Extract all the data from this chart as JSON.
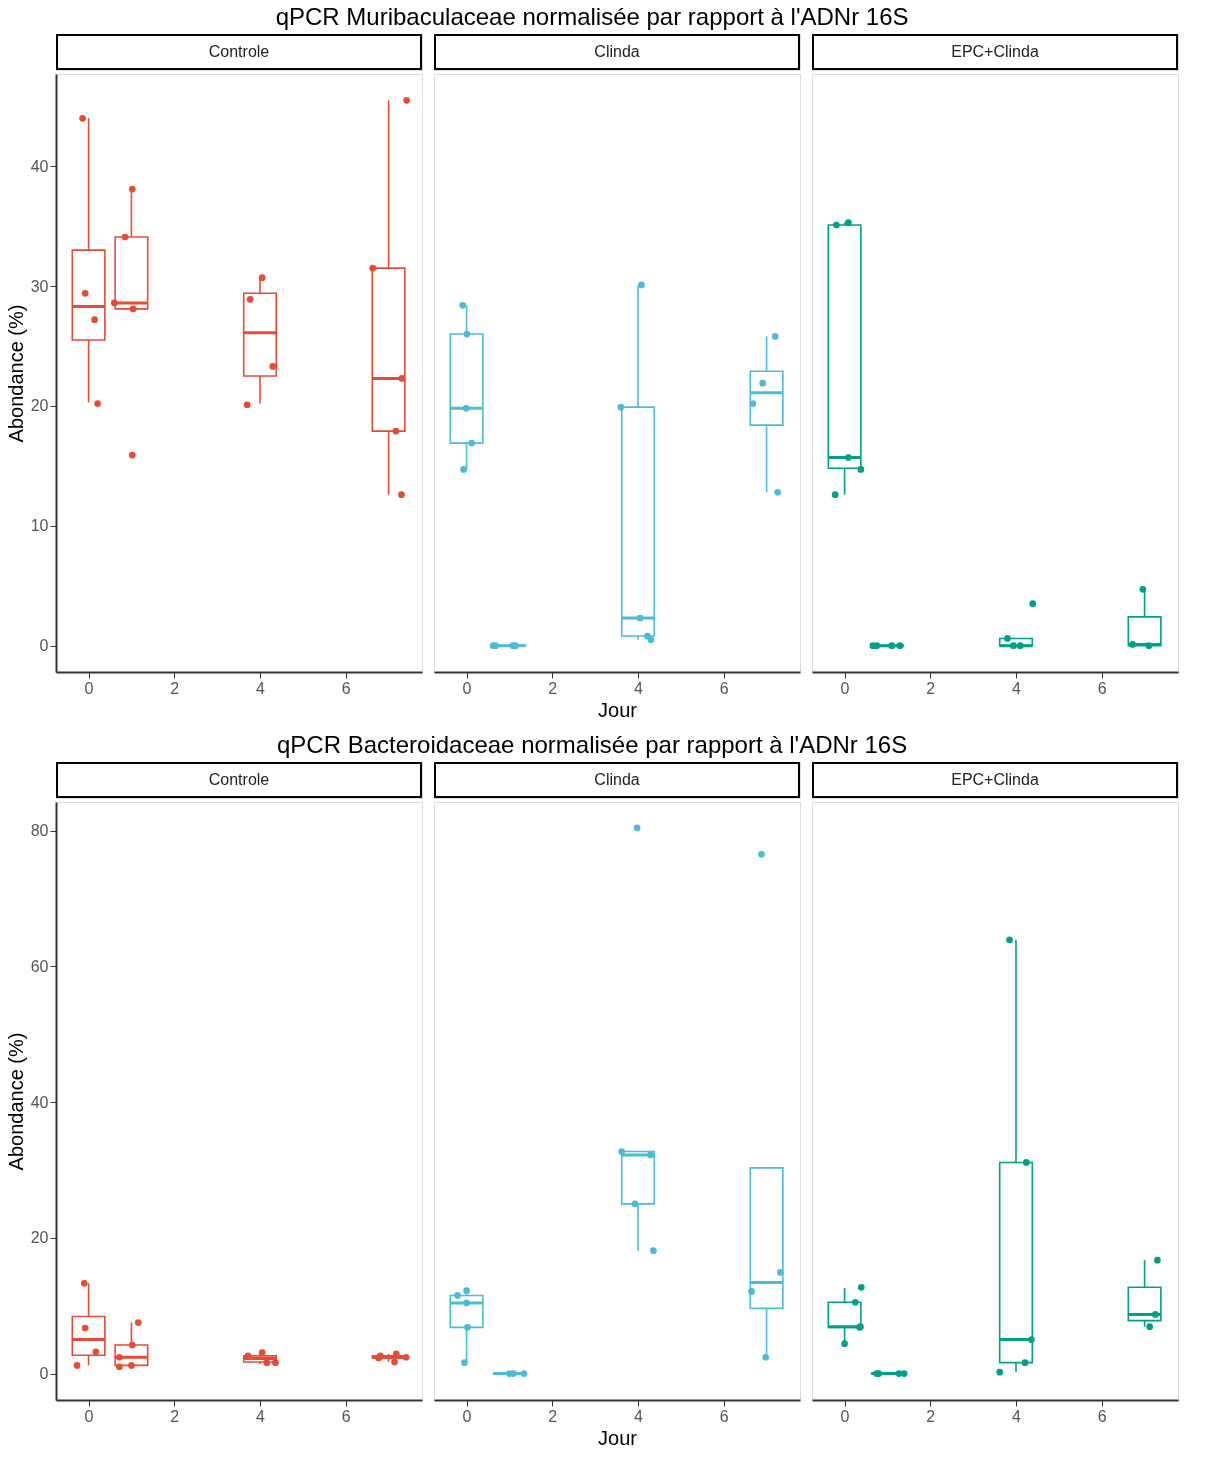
{
  "chart_data": [
    {
      "type": "box",
      "subtitle": "Controle",
      "ylabel": "Abondance (%)",
      "x": [
        0,
        1,
        4,
        7
      ],
      "xlim": [
        -0.76,
        7.78
      ],
      "xticks": [
        0,
        2,
        4,
        6
      ],
      "ylim": [
        -2.2,
        47.7
      ],
      "yticks": [
        0,
        10,
        20,
        30,
        40
      ],
      "grid": false,
      "series": [
        {
          "type": "box",
          "color": "#e64b35",
          "boxes": [
            {
              "low": 20.3,
              "q1": 25.5,
              "median": 28.3,
              "q3": 33.0,
              "high": 44.0
            },
            {
              "low": 28.1,
              "q1": 28.1,
              "median": 28.6,
              "q3": 34.1,
              "high": 38.1
            },
            {
              "low": 20.2,
              "q1": 22.5,
              "median": 26.1,
              "q3": 29.4,
              "high": 30.7
            },
            {
              "low": 12.6,
              "q1": 17.9,
              "median": 22.3,
              "q3": 31.5,
              "high": 45.5
            }
          ]
        },
        {
          "type": "scatter",
          "color": "#e64b35",
          "marker": "circle",
          "x": [
            -0.14,
            -0.08,
            0.14,
            0.21,
            1.02,
            0.85,
            0.6,
            1.04,
            1.02,
            4.05,
            3.77,
            4.3,
            3.7,
            7.42,
            6.63,
            7.31,
            7.17,
            7.3
          ],
          "values": [
            44.0,
            29.4,
            27.2,
            20.2,
            38.1,
            34.1,
            28.6,
            28.1,
            15.9,
            30.7,
            28.9,
            23.3,
            20.1,
            45.5,
            31.5,
            22.3,
            17.9,
            12.6
          ]
        }
      ]
    },
    {
      "type": "box",
      "title": "qPCR Muribaculaceae normalisée par rapport à l'ADNr 16S",
      "subtitle": "Clinda",
      "xlabel": "Jour",
      "x": [
        0,
        1,
        4,
        7
      ],
      "xlim": [
        -0.76,
        7.78
      ],
      "xticks": [
        0,
        2,
        4,
        6
      ],
      "ylim": [
        -2.2,
        47.7
      ],
      "yticks": [
        0,
        10,
        20,
        30,
        40
      ],
      "tick_labels": "x",
      "grid": false,
      "series": [
        {
          "type": "box",
          "color": "#4dbbd5",
          "boxes": [
            {
              "low": 14.7,
              "q1": 16.9,
              "median": 19.8,
              "q3": 26.0,
              "high": 28.4
            },
            {
              "low": 0,
              "q1": 0,
              "median": 0,
              "q3": 0,
              "high": 0
            },
            {
              "low": 0.5,
              "q1": 0.8,
              "median": 2.3,
              "q3": 19.9,
              "high": 30.1
            },
            {
              "low": 12.8,
              "q1": 18.4,
              "median": 21.1,
              "q3": 22.9,
              "high": 25.8
            }
          ]
        },
        {
          "type": "scatter",
          "color": "#4dbbd5",
          "marker": "circle",
          "x": [
            -0.09,
            0.01,
            -0.01,
            0.12,
            -0.07,
            0.62,
            0.68,
            1.08,
            1.14,
            4.08,
            3.6,
            4.05,
            4.22,
            4.3,
            7.2,
            6.91,
            6.68,
            7.26
          ],
          "values": [
            28.4,
            26.0,
            19.8,
            16.9,
            14.7,
            0,
            0,
            0,
            0,
            30.1,
            19.9,
            2.3,
            0.8,
            0.5,
            25.8,
            21.9,
            20.2,
            12.8
          ]
        }
      ]
    },
    {
      "type": "box",
      "subtitle": "EPC+Clinda",
      "x": [
        0,
        1,
        4,
        7
      ],
      "xlim": [
        -0.76,
        7.78
      ],
      "xticks": [
        0,
        2,
        4,
        6
      ],
      "ylim": [
        -2.2,
        47.7
      ],
      "yticks": [
        0,
        10,
        20,
        30,
        40
      ],
      "tick_labels": "x",
      "grid": false,
      "series": [
        {
          "type": "box",
          "color": "#00a087",
          "boxes": [
            {
              "low": 12.6,
              "q1": 14.8,
              "median": 15.7,
              "q3": 35.1,
              "high": 35.3
            },
            {
              "low": 0,
              "q1": 0,
              "median": 0,
              "q3": 0,
              "high": 0
            },
            {
              "low": 0,
              "q1": 0,
              "median": 0,
              "q3": 0.6,
              "high": 0.6
            },
            {
              "low": 0,
              "q1": 0,
              "median": 0.1,
              "q3": 2.4,
              "high": 4.7
            }
          ]
        },
        {
          "type": "scatter",
          "color": "#00a087",
          "marker": "circle",
          "x": [
            -0.19,
            0.09,
            0.09,
            0.38,
            -0.22,
            0.66,
            0.75,
            1.1,
            1.29,
            3.8,
            3.94,
            4.1,
            4.39,
            6.96,
            6.72,
            7.1
          ],
          "values": [
            35.1,
            35.3,
            15.7,
            14.7,
            12.6,
            0,
            0,
            0,
            0,
            0.6,
            0,
            0,
            3.5,
            4.7,
            0.1,
            0
          ]
        }
      ]
    },
    {
      "type": "box",
      "subtitle": "Controle",
      "ylabel": "Abondance (%)",
      "x": [
        0,
        1,
        4,
        7
      ],
      "xlim": [
        -0.76,
        7.78
      ],
      "xticks": [
        0,
        2,
        4,
        6
      ],
      "ylim": [
        -3.9,
        84.2
      ],
      "yticks": [
        0,
        20,
        40,
        60,
        80
      ],
      "grid": false,
      "series": [
        {
          "type": "box",
          "color": "#e64b35",
          "boxes": [
            {
              "low": 1.2,
              "q1": 2.7,
              "median": 5.0,
              "q3": 8.4,
              "high": 13.3
            },
            {
              "low": 1.0,
              "q1": 1.2,
              "median": 2.4,
              "q3": 4.2,
              "high": 7.5
            },
            {
              "low": 1.4,
              "q1": 1.7,
              "median": 2.2,
              "q3": 2.6,
              "high": 3.1
            },
            {
              "low": 1.7,
              "q1": 2.3,
              "median": 2.4,
              "q3": 2.6,
              "high": 2.9
            }
          ]
        },
        {
          "type": "scatter",
          "color": "#e64b35",
          "marker": "circle",
          "x": [
            -0.1,
            -0.08,
            0.17,
            -0.27,
            1.16,
            1.02,
            0.72,
            0.72,
            1.0,
            3.72,
            4.05,
            4.16,
            4.36,
            6.77,
            7.18,
            7.14,
            7.41,
            6.81
          ],
          "values": [
            13.3,
            6.7,
            3.2,
            1.2,
            7.5,
            4.2,
            2.4,
            1.0,
            1.2,
            2.6,
            3.1,
            1.6,
            1.6,
            2.3,
            2.9,
            1.7,
            2.4,
            2.6
          ]
        }
      ]
    },
    {
      "type": "box",
      "title": "qPCR Bacteroidaceae normalisée par rapport à l'ADNr 16S",
      "subtitle": "Clinda",
      "xlabel": "Jour",
      "x": [
        0,
        1,
        4,
        7
      ],
      "xlim": [
        -0.76,
        7.78
      ],
      "xticks": [
        0,
        2,
        4,
        6
      ],
      "ylim": [
        -3.9,
        84.2
      ],
      "yticks": [
        0,
        20,
        40,
        60,
        80
      ],
      "tick_labels": "x",
      "grid": false,
      "series": [
        {
          "type": "box",
          "color": "#4dbbd5",
          "boxes": [
            {
              "low": 1.6,
              "q1": 6.8,
              "median": 10.4,
              "q3": 11.5,
              "high": 12.2
            },
            {
              "low": 0,
              "q1": 0,
              "median": 0,
              "q3": 0,
              "high": 0
            },
            {
              "low": 18.1,
              "q1": 25.0,
              "median": 32.2,
              "q3": 32.7,
              "high": 32.7
            },
            {
              "low": 2.4,
              "q1": 9.6,
              "median": 13.4,
              "q3": 30.3,
              "high": 30.3
            }
          ]
        },
        {
          "type": "scatter",
          "color": "#4dbbd5",
          "marker": "circle",
          "x": [
            -0.21,
            0,
            0,
            0.02,
            -0.05,
            1.0,
            1.09,
            1.34,
            3.98,
            3.62,
            4.29,
            3.93,
            4.36,
            6.88,
            7.32,
            6.65,
            6.98
          ],
          "values": [
            11.5,
            12.2,
            10.4,
            6.8,
            1.6,
            0,
            0,
            0,
            80.4,
            32.7,
            32.2,
            25.0,
            18.1,
            76.5,
            14.9,
            12.1,
            2.4
          ]
        }
      ]
    },
    {
      "type": "box",
      "subtitle": "EPC+Clinda",
      "x": [
        0,
        1,
        4,
        7
      ],
      "xlim": [
        -0.76,
        7.78
      ],
      "xticks": [
        0,
        2,
        4,
        6
      ],
      "ylim": [
        -3.9,
        84.2
      ],
      "yticks": [
        0,
        20,
        40,
        60,
        80
      ],
      "tick_labels": "x",
      "grid": false,
      "series": [
        {
          "type": "box",
          "color": "#00a087",
          "boxes": [
            {
              "low": 4.4,
              "q1": 6.8,
              "median": 6.9,
              "q3": 10.5,
              "high": 12.6
            },
            {
              "low": 0,
              "q1": 0,
              "median": 0,
              "q3": 0,
              "high": 0
            },
            {
              "low": 0.2,
              "q1": 1.6,
              "median": 5.0,
              "q3": 31.1,
              "high": 63.9
            },
            {
              "low": 6.9,
              "q1": 7.8,
              "median": 8.7,
              "q3": 12.7,
              "high": 16.7
            }
          ]
        },
        {
          "type": "scatter",
          "color": "#00a087",
          "marker": "circle",
          "x": [
            0.39,
            0.25,
            0.37,
            0,
            0.35,
            0.75,
            0.8,
            1.27,
            1.39,
            3.85,
            4.24,
            4.36,
            4.21,
            3.62,
            7.3,
            7.25,
            7.12
          ],
          "values": [
            12.7,
            10.5,
            6.9,
            4.4,
            6.8,
            0,
            0,
            0,
            0,
            63.9,
            31.1,
            5.0,
            1.6,
            0.2,
            16.7,
            8.7,
            6.9
          ]
        }
      ]
    }
  ]
}
